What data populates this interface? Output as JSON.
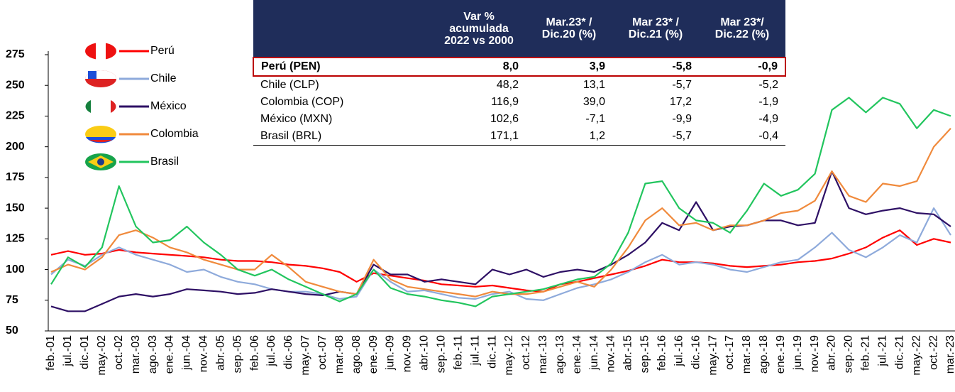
{
  "chart_data": {
    "type": "line",
    "categories": [
      "feb.-01",
      "jul.-01",
      "dic.-01",
      "may.-02",
      "oct.-02",
      "mar.-03",
      "ago.-03",
      "ene.-04",
      "jun.-04",
      "nov.-04",
      "abr.-05",
      "sep.-05",
      "feb.-06",
      "jul.-06",
      "dic.-06",
      "may.-07",
      "oct.-07",
      "mar.-08",
      "ago.-08",
      "ene.-09",
      "jun.-09",
      "nov.-09",
      "abr.-10",
      "sep.-10",
      "feb.-11",
      "jul.-11",
      "dic.-11",
      "may.-12",
      "oct.-12",
      "mar.-13",
      "ago.-13",
      "ene.-14",
      "jun.-14",
      "nov.-14",
      "abr.-15",
      "sep.-15",
      "feb.-16",
      "jul.-16",
      "dic.-16",
      "may.-17",
      "oct.-17",
      "mar.-18",
      "ago.-18",
      "ene.-19",
      "jun.-19",
      "nov.-19",
      "abr.-20",
      "sep.-20",
      "feb.-21",
      "jul.-21",
      "dic.-21",
      "may.-22",
      "oct.-22",
      "mar.-23"
    ],
    "series": [
      {
        "name": "Perú",
        "color": "#ff0000",
        "values": [
          112,
          115,
          112,
          113,
          116,
          114,
          113,
          112,
          111,
          110,
          108,
          107,
          107,
          106,
          104,
          103,
          101,
          98,
          90,
          97,
          95,
          93,
          91,
          88,
          87,
          86,
          87,
          85,
          83,
          82,
          88,
          90,
          93,
          96,
          99,
          103,
          108,
          106,
          106,
          105,
          103,
          102,
          103,
          104,
          106,
          107,
          109,
          113,
          118,
          126,
          132,
          120,
          125,
          122
        ]
      },
      {
        "name": "Chile",
        "color": "#8eaadb",
        "values": [
          96,
          108,
          103,
          112,
          118,
          112,
          108,
          104,
          98,
          100,
          94,
          90,
          88,
          84,
          82,
          82,
          80,
          76,
          78,
          100,
          90,
          82,
          83,
          80,
          77,
          76,
          80,
          82,
          76,
          75,
          80,
          85,
          88,
          92,
          98,
          106,
          112,
          104,
          106,
          104,
          100,
          98,
          102,
          106,
          108,
          118,
          130,
          116,
          110,
          118,
          128,
          122,
          150,
          128
        ]
      },
      {
        "name": "México",
        "color": "#2e1065",
        "values": [
          70,
          66,
          66,
          72,
          78,
          80,
          78,
          80,
          84,
          83,
          82,
          80,
          81,
          84,
          82,
          80,
          79,
          82,
          80,
          104,
          96,
          96,
          90,
          92,
          90,
          88,
          100,
          96,
          100,
          94,
          98,
          100,
          98,
          104,
          112,
          122,
          138,
          132,
          155,
          132,
          135,
          136,
          140,
          140,
          136,
          138,
          180,
          150,
          145,
          148,
          150,
          146,
          145,
          135
        ]
      },
      {
        "name": "Colombia",
        "color": "#f08a3c",
        "values": [
          98,
          104,
          100,
          110,
          128,
          132,
          126,
          118,
          114,
          108,
          104,
          100,
          100,
          112,
          102,
          90,
          86,
          82,
          80,
          108,
          92,
          86,
          84,
          82,
          80,
          78,
          82,
          80,
          80,
          82,
          86,
          90,
          86,
          100,
          118,
          140,
          150,
          136,
          138,
          132,
          136,
          136,
          140,
          146,
          148,
          156,
          180,
          160,
          155,
          170,
          168,
          172,
          200,
          215
        ]
      },
      {
        "name": "Brasil",
        "color": "#22c55e",
        "values": [
          88,
          110,
          102,
          118,
          168,
          135,
          122,
          124,
          135,
          122,
          112,
          100,
          95,
          100,
          92,
          86,
          80,
          74,
          80,
          100,
          85,
          80,
          78,
          75,
          73,
          70,
          78,
          80,
          82,
          84,
          88,
          92,
          94,
          105,
          130,
          170,
          172,
          150,
          140,
          138,
          130,
          148,
          170,
          160,
          165,
          178,
          230,
          240,
          228,
          240,
          235,
          215,
          230,
          225
        ]
      }
    ],
    "ylim": [
      50,
      275
    ],
    "yticks": [
      50,
      75,
      100,
      125,
      150,
      175,
      200,
      225,
      250,
      275
    ]
  },
  "table": {
    "header": [
      "Var % acumulada 2022 vs 2000",
      "Mar.23* / Dic.20 (%)",
      "Mar 23* / Dic.21 (%)",
      "Mar 23*/ Dic.22 (%)"
    ],
    "rows": [
      [
        "Perú (PEN)",
        "8,0",
        "3,9",
        "-5,8",
        "-0,9"
      ],
      [
        "Chile (CLP)",
        "48,2",
        "13,1",
        "-5,7",
        "-5,2"
      ],
      [
        "Colombia (COP)",
        "116,9",
        "39,0",
        "17,2",
        "-1,9"
      ],
      [
        "México (MXN)",
        "102,6",
        "-7,1",
        "-9,9",
        "-4,9"
      ],
      [
        "Brasil (BRL)",
        "171,1",
        "1,2",
        "-5,7",
        "-0,4"
      ]
    ]
  }
}
